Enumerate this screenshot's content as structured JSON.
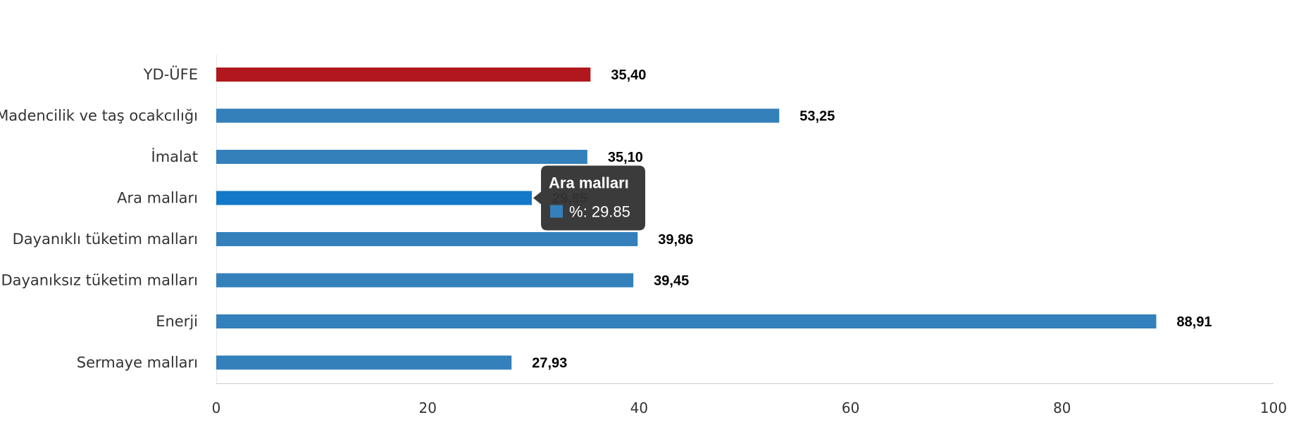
{
  "chart_data": {
    "type": "bar",
    "orientation": "horizontal",
    "categories": [
      "YD-ÜFE",
      "Madencilik ve taş ocakcılığı",
      "İmalat",
      "Ara malları",
      "Dayanıklı tüketim malları",
      "Dayanıksız tüketim malları",
      "Enerji",
      "Sermaye malları"
    ],
    "values": [
      35.4,
      53.25,
      35.1,
      29.85,
      39.86,
      39.45,
      88.91,
      27.93
    ],
    "value_labels": [
      "35,40",
      "53,25",
      "35,10",
      "29,85",
      "39,86",
      "39,45",
      "88,91",
      "27,93"
    ],
    "xlim": [
      0,
      100
    ],
    "x_ticks": [
      "0",
      "20",
      "40",
      "60",
      "80",
      "100"
    ],
    "colors": {
      "default": "#3380bb",
      "highlight": "#b0181d",
      "hover": "#1478c8"
    },
    "highlight_index": 0,
    "hover_index": 3,
    "grid": false
  },
  "tooltip": {
    "title": "Ara malları",
    "text": "%: 29.85",
    "swatch_color": "#3380bb",
    "background": "#333333"
  }
}
